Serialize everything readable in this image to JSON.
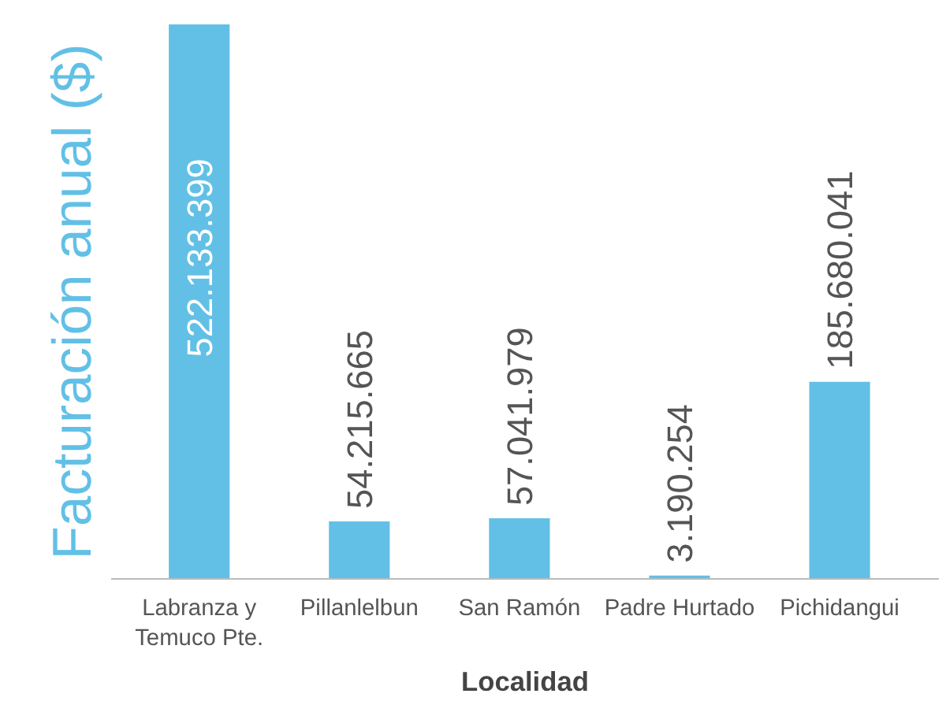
{
  "chart_data": {
    "type": "bar",
    "xlabel": "Localidad",
    "ylabel": "Facturación anual ($)",
    "categories": [
      "Labranza y\nTemuco Pte.",
      "Pillanlelbun",
      "San Ramón",
      "Padre Hurtado",
      "Pichidangui"
    ],
    "values": [
      522133399,
      54215665,
      57041979,
      3190254,
      185680041
    ],
    "value_labels": [
      "522.133.399",
      "54.215.665",
      "57.041.979",
      "3.190.254",
      "185.680.041"
    ],
    "color": "#62c0e6",
    "grid": false
  }
}
